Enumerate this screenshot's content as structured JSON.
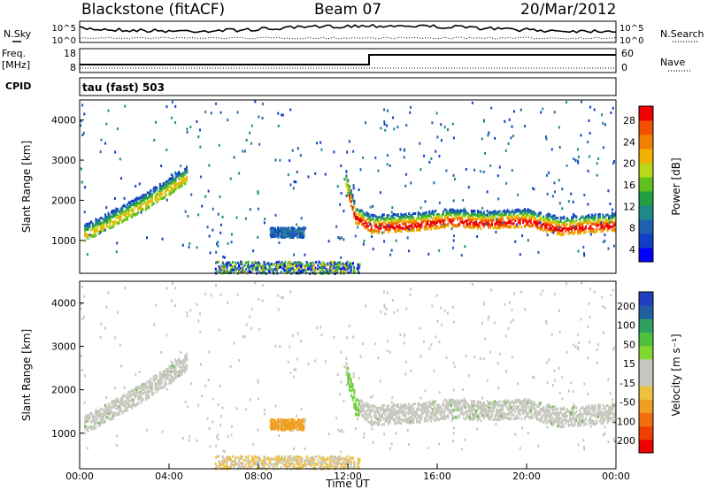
{
  "header": {
    "title": "Blackstone (fitACF)",
    "beam": "Beam 07",
    "date": "20/Mar/2012"
  },
  "sky_panel": {
    "left_label": "N.Sky",
    "right_label": "N.Search",
    "ticks_left": [
      "10^5",
      "10^0"
    ],
    "ticks_right": [
      "10^5",
      "10^0"
    ]
  },
  "freq_panel": {
    "left_label_1": "Freq.",
    "left_label_2": "[MHz]",
    "right_label": "Nave",
    "ticks_left": [
      "18",
      "8"
    ],
    "ticks_right": [
      "60",
      "0"
    ]
  },
  "cpid": {
    "label": "CPID",
    "value": "tau (fast) 503"
  },
  "chart_data": [
    {
      "type": "heatmap",
      "name": "power",
      "ylabel": "Slant Range [km]",
      "colorbar_label": "Power [dB]",
      "ylim": [
        180,
        4500
      ],
      "y_ticks": [
        "1000",
        "2000",
        "3000",
        "4000"
      ],
      "colorbar_ticks": [
        "28",
        "24",
        "20",
        "16",
        "12",
        "8",
        "4"
      ],
      "colorbar_colors": [
        "#0000ff",
        "#1040c8",
        "#2060b0",
        "#208888",
        "#20a040",
        "#60c020",
        "#b8d818",
        "#f0b000",
        "#f08000",
        "#f05000",
        "#f00000"
      ]
    },
    {
      "type": "heatmap",
      "name": "velocity",
      "ylabel": "Slant Range [km]",
      "colorbar_label": "Velocity [m s⁻¹]",
      "ylim": [
        180,
        4500
      ],
      "y_ticks": [
        "1000",
        "2000",
        "3000",
        "4000"
      ],
      "colorbar_ticks": [
        "200",
        "100",
        "50",
        "15",
        "-15",
        "-50",
        "-100",
        "-200"
      ],
      "colorbar_colors": [
        "#2040c0",
        "#2060a0",
        "#30a060",
        "#50c040",
        "#80d830",
        "#c8c8c0",
        "#c8c8c0",
        "#f0c040",
        "#f0a020",
        "#f07010",
        "#f04000",
        "#f00000"
      ]
    }
  ],
  "x_axis": {
    "label": "Time UT",
    "ticks": [
      "00:00",
      "04:00",
      "08:00",
      "12:00",
      "16:00",
      "20:00",
      "00:00"
    ],
    "range_hours": [
      0,
      24
    ]
  },
  "bands": [
    {
      "type": "power",
      "points": [
        [
          0.2,
          1150
        ],
        [
          1.0,
          1350
        ],
        [
          2.0,
          1650
        ],
        [
          3.0,
          1950
        ],
        [
          4.0,
          2300
        ],
        [
          4.8,
          2600
        ]
      ],
      "width": 260
    },
    {
      "type": "power",
      "points": [
        [
          11.9,
          2450
        ],
        [
          12.3,
          1600
        ],
        [
          13.0,
          1350
        ],
        [
          15.0,
          1400
        ],
        [
          16.5,
          1500
        ],
        [
          18.0,
          1450
        ],
        [
          20.0,
          1500
        ],
        [
          21.5,
          1300
        ],
        [
          22.5,
          1350
        ],
        [
          24.0,
          1400
        ]
      ],
      "width": 280
    }
  ]
}
